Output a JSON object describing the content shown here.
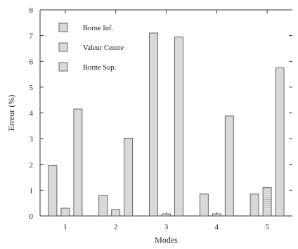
{
  "chart_data": {
    "type": "bar",
    "categories": [
      "1",
      "2",
      "3",
      "4",
      "5"
    ],
    "xlabel": "Modes",
    "ylabel": "Erreur (%)",
    "ylim": [
      0,
      8
    ],
    "yticks": [
      "0",
      "1",
      "2",
      "3",
      "4",
      "5",
      "6",
      "7",
      "8"
    ],
    "grid": false,
    "legend_position": "top-left",
    "series": [
      {
        "name": "Borne Inf.",
        "values": [
          1.95,
          0.8,
          7.1,
          0.85,
          0.85
        ],
        "color": "#d9d9d9",
        "pattern": "plain"
      },
      {
        "name": "Valeur Centre",
        "values": [
          0.3,
          0.25,
          0.08,
          0.08,
          1.1
        ],
        "color": "#d9d9d9",
        "pattern": "plain"
      },
      {
        "name": "Borne Sup.",
        "values": [
          4.15,
          3.02,
          6.95,
          3.88,
          5.75
        ],
        "color": "#d9d9d9",
        "pattern": "plain"
      }
    ]
  }
}
